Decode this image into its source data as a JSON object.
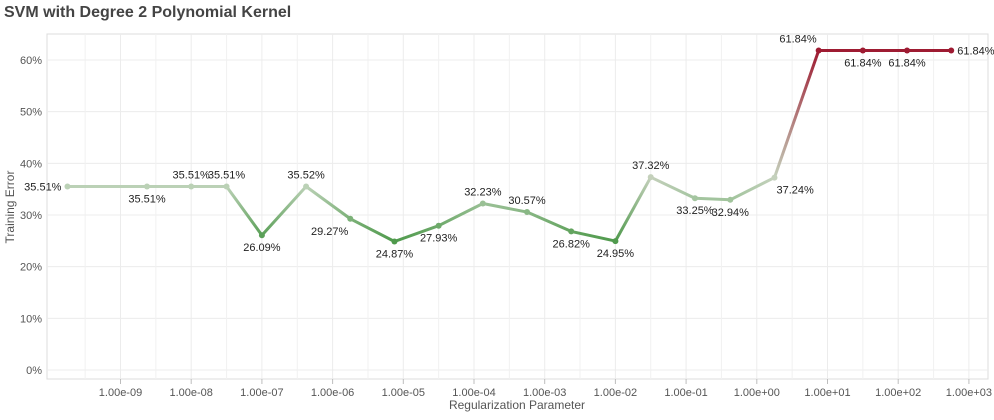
{
  "chart_data": {
    "type": "line",
    "title": "SVM with Degree 2 Polynomial Kernel",
    "xlabel": "Regularization Parameter",
    "ylabel": "Training Error",
    "x_scale": "log",
    "x_ticks": [
      {
        "value": 1e-09,
        "label": "1.00e-09"
      },
      {
        "value": 1e-08,
        "label": "1.00e-08"
      },
      {
        "value": 1e-07,
        "label": "1.00e-07"
      },
      {
        "value": 1e-06,
        "label": "1.00e-06"
      },
      {
        "value": 1e-05,
        "label": "1.00e-05"
      },
      {
        "value": 0.0001,
        "label": "1.00e-04"
      },
      {
        "value": 0.001,
        "label": "1.00e-03"
      },
      {
        "value": 0.01,
        "label": "1.00e-02"
      },
      {
        "value": 0.1,
        "label": "1.00e-01"
      },
      {
        "value": 1,
        "label": "1.00e+00"
      },
      {
        "value": 10,
        "label": "1.00e+01"
      },
      {
        "value": 100,
        "label": "1.00e+02"
      },
      {
        "value": 1000,
        "label": "1.00e+03"
      }
    ],
    "y_ticks": [
      {
        "value": 0,
        "label": "0%"
      },
      {
        "value": 10,
        "label": "10%"
      },
      {
        "value": 20,
        "label": "20%"
      },
      {
        "value": 30,
        "label": "30%"
      },
      {
        "value": 40,
        "label": "40%"
      },
      {
        "value": 50,
        "label": "50%"
      },
      {
        "value": 60,
        "label": "60%"
      }
    ],
    "ylim": [
      0,
      66
    ],
    "grid": true,
    "color_low": "#4f9a4c",
    "color_mid": "#c5d6c0",
    "color_high": "#9e1b32",
    "points": [
      {
        "x": 1.778e-10,
        "y": 35.51,
        "label": "35.51%",
        "label_pos": "left"
      },
      {
        "x": 2.371e-09,
        "y": 35.51,
        "label": "35.51%",
        "label_pos": "below"
      },
      {
        "x": 1e-08,
        "y": 35.51,
        "label": "35.51%",
        "label_pos": "above"
      },
      {
        "x": 3.162e-08,
        "y": 35.51,
        "label": "35.51%",
        "label_pos": "above"
      },
      {
        "x": 1e-07,
        "y": 26.09,
        "label": "26.09%",
        "label_pos": "below"
      },
      {
        "x": 4.217e-07,
        "y": 35.52,
        "label": "35.52%",
        "label_pos": "above"
      },
      {
        "x": 1.778e-06,
        "y": 29.27,
        "label": "29.27%",
        "label_pos": "below-left"
      },
      {
        "x": 7.499e-06,
        "y": 24.87,
        "label": "24.87%",
        "label_pos": "below"
      },
      {
        "x": 3.162e-05,
        "y": 27.93,
        "label": "27.93%",
        "label_pos": "below"
      },
      {
        "x": 0.0001334,
        "y": 32.23,
        "label": "32.23%",
        "label_pos": "above"
      },
      {
        "x": 0.0005623,
        "y": 30.57,
        "label": "30.57%",
        "label_pos": "above"
      },
      {
        "x": 0.002371,
        "y": 26.82,
        "label": "26.82%",
        "label_pos": "below"
      },
      {
        "x": 0.01,
        "y": 24.95,
        "label": "24.95%",
        "label_pos": "below"
      },
      {
        "x": 0.03162,
        "y": 37.32,
        "label": "37.32%",
        "label_pos": "above"
      },
      {
        "x": 0.1334,
        "y": 33.25,
        "label": "33.25%",
        "label_pos": "below"
      },
      {
        "x": 0.4217,
        "y": 32.94,
        "label": "32.94%",
        "label_pos": "below"
      },
      {
        "x": 1.778,
        "y": 37.24,
        "label": "37.24%",
        "label_pos": "below-right"
      },
      {
        "x": 7.499,
        "y": 61.84,
        "label": "61.84%",
        "label_pos": "above-left"
      },
      {
        "x": 31.62,
        "y": 61.84,
        "label": "61.84%",
        "label_pos": "below"
      },
      {
        "x": 133.4,
        "y": 61.84,
        "label": "61.84%",
        "label_pos": "below"
      },
      {
        "x": 562.3,
        "y": 61.84,
        "label": "61.84%",
        "label_pos": "right"
      }
    ]
  }
}
